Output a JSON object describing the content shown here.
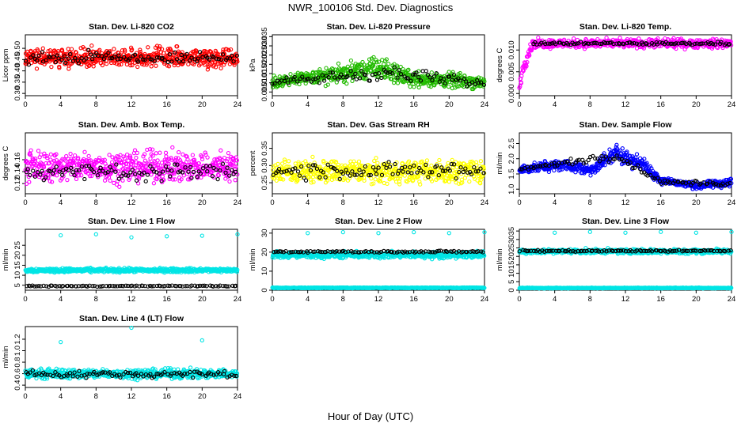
{
  "figure": {
    "title": "NWR_100106  Std. Dev. Diagnostics",
    "xlabel": "Hour of Day (UTC)"
  },
  "colors": {
    "red": "#ff0000",
    "green": "#22bb00",
    "magenta": "#ff00ff",
    "yellow": "#ffff00",
    "blue": "#0000ff",
    "cyan": "#00e5e5",
    "overlay": "#000000"
  },
  "chart_data": [
    {
      "type": "scatter",
      "title": "Stan. Dev. Li-820 CO2",
      "ylabel": "Licor ppm",
      "xlim": [
        0,
        24
      ],
      "ylim": [
        0.29,
        0.56
      ],
      "xticks": [
        "0",
        "4",
        "8",
        "12",
        "16",
        "20",
        "24"
      ],
      "yticks": [
        {
          "value": 0.3,
          "label": "0.30"
        },
        {
          "value": 0.35,
          "label": "0.35"
        },
        {
          "value": 0.4,
          "label": "0.40"
        },
        {
          "value": 0.45,
          "label": "0.45"
        },
        {
          "value": 0.5,
          "label": "0.50"
        }
      ],
      "series": [
        {
          "color_key": "red",
          "points_per_hour": 24,
          "band": [
            {
              "x": 0,
              "low": 0.4,
              "high": 0.52
            },
            {
              "x": 24,
              "low": 0.4,
              "high": 0.52
            }
          ]
        },
        {
          "color_key": "overlay",
          "points_per_hour": 4,
          "band": [
            {
              "x": 0,
              "low": 0.42,
              "high": 0.5
            },
            {
              "x": 24,
              "low": 0.42,
              "high": 0.5
            }
          ]
        }
      ]
    },
    {
      "type": "scatter",
      "title": "Stan. Dev. Li-820 Pressure",
      "ylabel": "kPa",
      "xlim": [
        0,
        24
      ],
      "ylim": [
        0.003,
        0.036
      ],
      "xticks": [
        "0",
        "4",
        "8",
        "12",
        "16",
        "20",
        "24"
      ],
      "yticks": [
        {
          "value": 0.005,
          "label": "0.005"
        },
        {
          "value": 0.01,
          "label": "0.010"
        },
        {
          "value": 0.015,
          "label": "0.015"
        },
        {
          "value": 0.02,
          "label": "0.020"
        },
        {
          "value": 0.025,
          "label": "0.025"
        },
        {
          "value": 0.03,
          "label": "0.030"
        },
        {
          "value": 0.035,
          "label": "0.035"
        }
      ],
      "series": [
        {
          "color_key": "green",
          "points_per_hour": 24,
          "band": [
            {
              "x": 0,
              "low": 0.006,
              "high": 0.014
            },
            {
              "x": 8,
              "low": 0.008,
              "high": 0.022
            },
            {
              "x": 12,
              "low": 0.009,
              "high": 0.027
            },
            {
              "x": 16,
              "low": 0.006,
              "high": 0.018
            },
            {
              "x": 24,
              "low": 0.005,
              "high": 0.016
            }
          ]
        },
        {
          "color_key": "overlay",
          "points_per_hour": 4,
          "band": [
            {
              "x": 0,
              "low": 0.008,
              "high": 0.012
            },
            {
              "x": 12,
              "low": 0.009,
              "high": 0.022
            },
            {
              "x": 24,
              "low": 0.006,
              "high": 0.013
            }
          ]
        }
      ]
    },
    {
      "type": "scatter",
      "title": "Stan. Dev. Li-820 Temp.",
      "ylabel": "degrees C",
      "xlim": [
        0,
        24
      ],
      "ylim": [
        -0.0005,
        0.0135
      ],
      "xticks": [
        "0",
        "4",
        "8",
        "12",
        "16",
        "20",
        "24"
      ],
      "yticks": [
        {
          "value": 0.0,
          "label": "0.000"
        },
        {
          "value": 0.005,
          "label": "0.005"
        },
        {
          "value": 0.01,
          "label": "0.010"
        }
      ],
      "series": [
        {
          "color_key": "magenta",
          "points_per_hour": 24,
          "band": [
            {
              "x": 0,
              "low": 0.0,
              "high": 0.004
            },
            {
              "x": 0.5,
              "low": 0.004,
              "high": 0.009
            },
            {
              "x": 1.5,
              "low": 0.01,
              "high": 0.013
            },
            {
              "x": 24,
              "low": 0.01,
              "high": 0.013
            }
          ]
        },
        {
          "color_key": "overlay",
          "points_per_hour": 4,
          "band": [
            {
              "x": 1.5,
              "low": 0.011,
              "high": 0.012
            },
            {
              "x": 24,
              "low": 0.011,
              "high": 0.012
            }
          ]
        }
      ]
    },
    {
      "type": "scatter",
      "title": "Stan. Dev. Amb. Box Temp.",
      "ylabel": "degrees C",
      "xlim": [
        0,
        24
      ],
      "ylim": [
        0.103,
        0.205
      ],
      "xticks": [
        "0",
        "4",
        "8",
        "12",
        "16",
        "20",
        "24"
      ],
      "yticks": [
        {
          "value": 0.12,
          "label": "0.12"
        },
        {
          "value": 0.14,
          "label": "0.14"
        },
        {
          "value": 0.16,
          "label": "0.16"
        }
      ],
      "series": [
        {
          "color_key": "magenta",
          "points_per_hour": 24,
          "band": [
            {
              "x": 0,
              "low": 0.112,
              "high": 0.185
            },
            {
              "x": 24,
              "low": 0.112,
              "high": 0.185
            }
          ]
        },
        {
          "color_key": "overlay",
          "points_per_hour": 4,
          "band": [
            {
              "x": 0,
              "low": 0.12,
              "high": 0.16
            },
            {
              "x": 24,
              "low": 0.12,
              "high": 0.16
            }
          ]
        }
      ]
    },
    {
      "type": "scatter",
      "title": "Stan. Dev. Gas Stream RH",
      "ylabel": "percent",
      "xlim": [
        0,
        24
      ],
      "ylim": [
        0.218,
        0.395
      ],
      "xticks": [
        "0",
        "4",
        "8",
        "12",
        "16",
        "20",
        "24"
      ],
      "yticks": [
        {
          "value": 0.25,
          "label": "0.25"
        },
        {
          "value": 0.3,
          "label": "0.30"
        },
        {
          "value": 0.35,
          "label": "0.35"
        }
      ],
      "series": [
        {
          "color_key": "yellow",
          "points_per_hour": 24,
          "band": [
            {
              "x": 0,
              "low": 0.235,
              "high": 0.33
            },
            {
              "x": 24,
              "low": 0.235,
              "high": 0.33
            }
          ]
        },
        {
          "color_key": "overlay",
          "points_per_hour": 4,
          "band": [
            {
              "x": 0,
              "low": 0.25,
              "high": 0.32
            },
            {
              "x": 24,
              "low": 0.25,
              "high": 0.32
            }
          ]
        }
      ]
    },
    {
      "type": "scatter",
      "title": "Stan. Dev. Sample Flow",
      "ylabel": "ml/min",
      "xlim": [
        0,
        24
      ],
      "ylim": [
        0.85,
        2.85
      ],
      "xticks": [
        "0",
        "4",
        "8",
        "12",
        "16",
        "20",
        "24"
      ],
      "yticks": [
        {
          "value": 1.0,
          "label": "1.0"
        },
        {
          "value": 1.5,
          "label": "1.5"
        },
        {
          "value": 2.0,
          "label": "2.0"
        },
        {
          "value": 2.5,
          "label": "2.5"
        }
      ],
      "series": [
        {
          "color_key": "blue",
          "points_per_hour": 24,
          "band": [
            {
              "x": 0,
              "low": 1.45,
              "high": 1.85
            },
            {
              "x": 5,
              "low": 1.55,
              "high": 2.05
            },
            {
              "x": 8,
              "low": 1.35,
              "high": 1.9
            },
            {
              "x": 11,
              "low": 1.8,
              "high": 2.6
            },
            {
              "x": 14,
              "low": 1.5,
              "high": 2.1
            },
            {
              "x": 16,
              "low": 1.1,
              "high": 1.5
            },
            {
              "x": 20,
              "low": 0.95,
              "high": 1.25
            },
            {
              "x": 24,
              "low": 1.0,
              "high": 1.45
            }
          ]
        },
        {
          "color_key": "overlay",
          "points_per_hour": 4,
          "band": [
            {
              "x": 0,
              "low": 1.55,
              "high": 1.75
            },
            {
              "x": 11,
              "low": 1.9,
              "high": 2.3
            },
            {
              "x": 16,
              "low": 1.15,
              "high": 1.35
            },
            {
              "x": 24,
              "low": 1.05,
              "high": 1.25
            }
          ]
        }
      ]
    },
    {
      "type": "scatter",
      "title": "Stan. Dev. Line 1 Flow",
      "ylabel": "ml/min",
      "xlim": [
        0,
        24
      ],
      "ylim": [
        2.5,
        33
      ],
      "xticks": [
        "0",
        "4",
        "8",
        "12",
        "16",
        "20",
        "24"
      ],
      "yticks": [
        {
          "value": 5,
          "label": "5"
        },
        {
          "value": 10,
          "label": "10"
        },
        {
          "value": 15,
          "label": "15"
        },
        {
          "value": 20,
          "label": "20"
        },
        {
          "value": 25,
          "label": "25"
        }
      ],
      "series": [
        {
          "color_key": "cyan",
          "points_per_hour": 24,
          "band": [
            {
              "x": 0,
              "low": 11,
              "high": 14
            },
            {
              "x": 24,
              "low": 11,
              "high": 14
            }
          ]
        },
        {
          "color_key": "overlay",
          "points_per_hour": 4,
          "band": [
            {
              "x": 0,
              "low": 4.2,
              "high": 5.0
            },
            {
              "x": 24,
              "low": 4.2,
              "high": 5.0
            }
          ]
        }
      ],
      "outliers": {
        "color_key": "cyan",
        "x": [
          4,
          8,
          12,
          16,
          20,
          24
        ],
        "y": [
          30,
          30.5,
          29,
          29.5,
          29.8,
          30.5
        ]
      }
    },
    {
      "type": "scatter",
      "title": "Stan. Dev. Line 2 Flow",
      "ylabel": "ml/min",
      "xlim": [
        0,
        24
      ],
      "ylim": [
        0,
        32
      ],
      "xticks": [
        "0",
        "4",
        "8",
        "12",
        "16",
        "20",
        "24"
      ],
      "yticks": [
        {
          "value": 0,
          "label": "0"
        },
        {
          "value": 10,
          "label": "10"
        },
        {
          "value": 20,
          "label": "20"
        },
        {
          "value": 30,
          "label": "30"
        }
      ],
      "series": [
        {
          "color_key": "cyan",
          "points_per_hour": 24,
          "band": [
            {
              "x": 0,
              "low": 16,
              "high": 21
            },
            {
              "x": 24,
              "low": 16,
              "high": 21
            }
          ]
        },
        {
          "color_key": "cyan",
          "points_per_hour": 24,
          "band": [
            {
              "x": 0,
              "low": 1.0,
              "high": 1.5
            },
            {
              "x": 24,
              "low": 1.0,
              "high": 1.5
            }
          ]
        },
        {
          "color_key": "overlay",
          "points_per_hour": 4,
          "band": [
            {
              "x": 0,
              "low": 19.5,
              "high": 21
            },
            {
              "x": 24,
              "low": 19.5,
              "high": 21
            }
          ]
        }
      ],
      "outliers": {
        "color_key": "cyan",
        "x": [
          4,
          8,
          12,
          16,
          20,
          24
        ],
        "y": [
          30,
          30.5,
          30,
          30.5,
          30,
          30.5
        ]
      }
    },
    {
      "type": "scatter",
      "title": "Stan. Dev. Line 3 Flow",
      "ylabel": "ml/min",
      "xlim": [
        0,
        24
      ],
      "ylim": [
        0,
        36
      ],
      "xticks": [
        "0",
        "4",
        "8",
        "12",
        "16",
        "20",
        "24"
      ],
      "yticks": [
        {
          "value": 0,
          "label": "0"
        },
        {
          "value": 5,
          "label": "5"
        },
        {
          "value": 10,
          "label": "10"
        },
        {
          "value": 15,
          "label": "15"
        },
        {
          "value": 20,
          "label": "20"
        },
        {
          "value": 25,
          "label": "25"
        },
        {
          "value": 30,
          "label": "30"
        },
        {
          "value": 35,
          "label": "35"
        }
      ],
      "series": [
        {
          "color_key": "cyan",
          "points_per_hour": 24,
          "band": [
            {
              "x": 0,
              "low": 21,
              "high": 25
            },
            {
              "x": 24,
              "low": 21,
              "high": 25
            }
          ]
        },
        {
          "color_key": "cyan",
          "points_per_hour": 24,
          "band": [
            {
              "x": 0,
              "low": 1.0,
              "high": 1.6
            },
            {
              "x": 24,
              "low": 1.0,
              "high": 1.6
            }
          ]
        },
        {
          "color_key": "overlay",
          "points_per_hour": 4,
          "band": [
            {
              "x": 0,
              "low": 22.5,
              "high": 24
            },
            {
              "x": 24,
              "low": 22.5,
              "high": 24
            }
          ]
        }
      ],
      "outliers": {
        "color_key": "cyan",
        "x": [
          4,
          8,
          12,
          16,
          20,
          24
        ],
        "y": [
          34,
          34.5,
          34,
          34.5,
          34,
          34.5
        ]
      }
    },
    {
      "type": "scatter",
      "title": "Stan. Dev. Line 4 (LT) Flow",
      "ylabel": "ml/min",
      "xlim": [
        0,
        24
      ],
      "ylim": [
        0.36,
        1.42
      ],
      "xticks": [
        "0",
        "4",
        "8",
        "12",
        "16",
        "20",
        "24"
      ],
      "yticks": [
        {
          "value": 0.4,
          "label": "0.4"
        },
        {
          "value": 0.6,
          "label": "0.6"
        },
        {
          "value": 0.8,
          "label": "0.8"
        },
        {
          "value": 1.0,
          "label": "1.0"
        },
        {
          "value": 1.2,
          "label": "1.2"
        }
      ],
      "series": [
        {
          "color_key": "cyan",
          "points_per_hour": 24,
          "band": [
            {
              "x": 0,
              "low": 0.48,
              "high": 0.72
            },
            {
              "x": 24,
              "low": 0.48,
              "high": 0.72
            }
          ]
        },
        {
          "color_key": "overlay",
          "points_per_hour": 4,
          "band": [
            {
              "x": 0,
              "low": 0.5,
              "high": 0.68
            },
            {
              "x": 24,
              "low": 0.5,
              "high": 0.68
            }
          ]
        }
      ],
      "outliers": {
        "color_key": "cyan",
        "x": [
          4,
          12,
          20
        ],
        "y": [
          1.15,
          1.4,
          1.18
        ]
      }
    }
  ]
}
